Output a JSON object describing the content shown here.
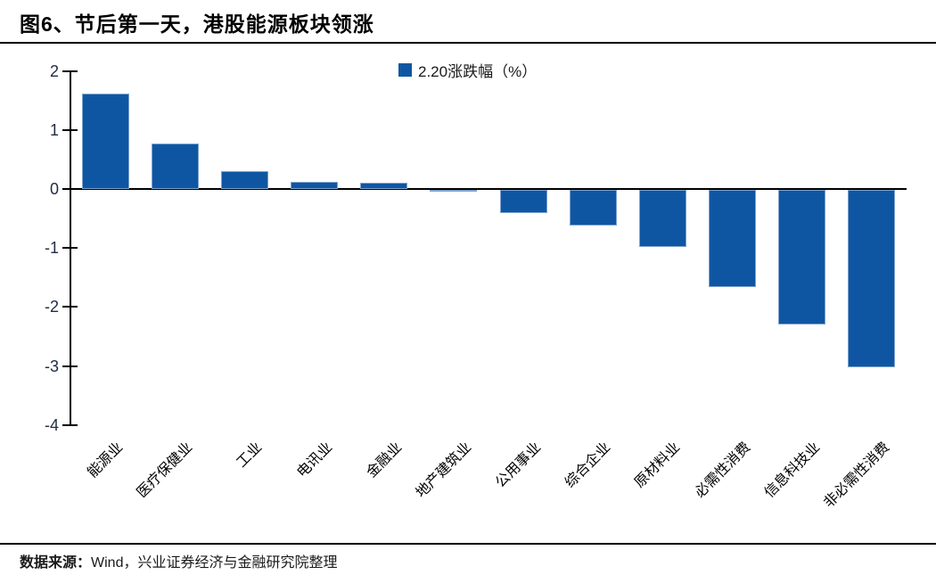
{
  "header": {
    "title": "图6、节后第一天，港股能源板块领涨"
  },
  "footer": {
    "label": "数据来源：",
    "text": "Wind，兴业证券经济与金融研究院整理"
  },
  "colors": {
    "bar": "#0F56A2",
    "bar_border": "#7EA2CE",
    "axis": "#000000",
    "axis_label": "#222C44",
    "text": "#000000"
  },
  "chart_data": {
    "type": "bar",
    "title": "图6、节后第一天，港股能源板块领涨",
    "legend": "2.20涨跌幅（%）",
    "legend_position": "top-center",
    "grid": false,
    "categories": [
      "能源业",
      "医疗保健业",
      "工业",
      "电讯业",
      "金融业",
      "地产建筑业",
      "公用事业",
      "综合企业",
      "原材料业",
      "必需性消费",
      "信息科技业",
      "非必需性消费"
    ],
    "values": [
      1.61,
      0.77,
      0.3,
      0.12,
      0.1,
      -0.02,
      -0.39,
      -0.6,
      -0.97,
      -1.65,
      -2.28,
      -3.0
    ],
    "xlabel": "",
    "ylabel": "",
    "ylim": [
      -4,
      2
    ],
    "ytick_step": 1,
    "yticks": [
      2,
      1,
      0,
      -1,
      -2,
      -3,
      -4
    ]
  }
}
